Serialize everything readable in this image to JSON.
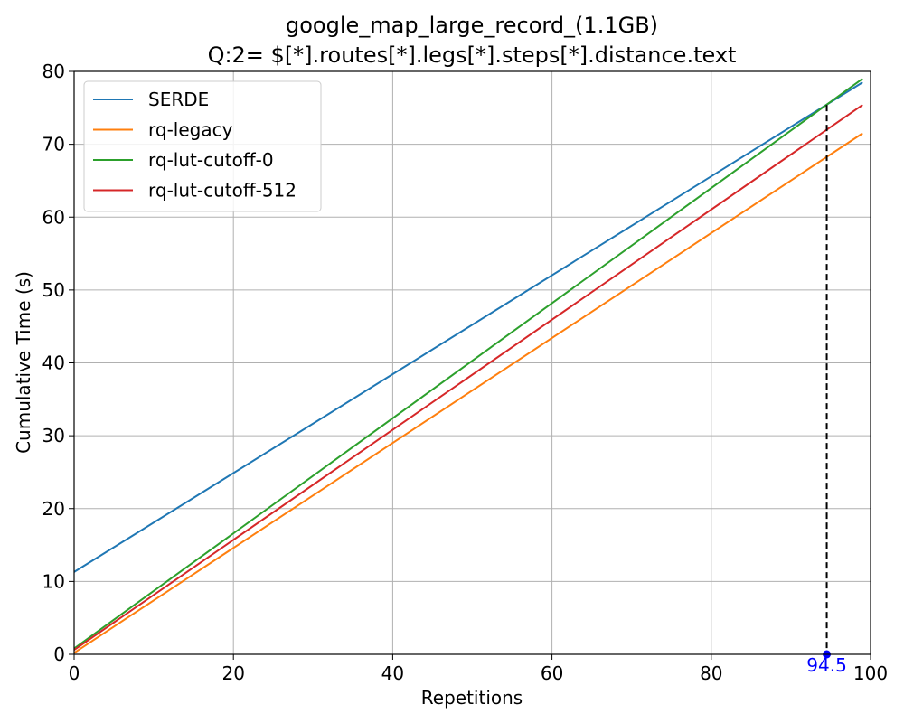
{
  "chart_data": {
    "type": "line",
    "title_line1": "google_map_large_record_(1.1GB)",
    "title_line2": "Q:2= $[*].routes[*].legs[*].steps[*].distance.text",
    "xlabel": "Repetitions",
    "ylabel": "Cumulative Time (s)",
    "xlim": [
      0,
      100
    ],
    "ylim": [
      0,
      80
    ],
    "xticks": [
      0,
      20,
      40,
      60,
      80,
      100
    ],
    "yticks": [
      0,
      10,
      20,
      30,
      40,
      50,
      60,
      70,
      80
    ],
    "grid": true,
    "legend_position": "top-left",
    "series": [
      {
        "name": "SERDE",
        "color": "#1f77b4",
        "x": [
          0,
          99
        ],
        "y": [
          11.3,
          78.5
        ]
      },
      {
        "name": "rq-legacy",
        "color": "#ff7f0e",
        "x": [
          0,
          99
        ],
        "y": [
          0.2,
          71.5
        ]
      },
      {
        "name": "rq-lut-cutoff-0",
        "color": "#2ca02c",
        "x": [
          0,
          99
        ],
        "y": [
          0.8,
          79.0
        ]
      },
      {
        "name": "rq-lut-cutoff-512",
        "color": "#d62728",
        "x": [
          0,
          99
        ],
        "y": [
          0.6,
          75.4
        ]
      }
    ],
    "annotation": {
      "x": 94.5,
      "y_top": 75.4,
      "label": "94.5",
      "color": "#0000ff",
      "line_color": "#000000"
    }
  }
}
